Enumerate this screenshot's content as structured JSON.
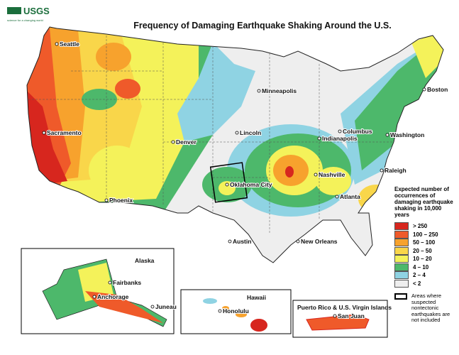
{
  "header": {
    "agency": "USGS",
    "tagline": "science for a changing world",
    "title": "Frequency of Damaging Earthquake Shaking Around the U.S."
  },
  "map": {
    "cities": [
      "Seattle",
      "Sacramento",
      "Phoenix",
      "Denver",
      "Minneapolis",
      "Lincoln",
      "Oklahoma City",
      "Austin",
      "New Orleans",
      "Indianapolis",
      "Columbus",
      "Washington",
      "Boston",
      "Nashville",
      "Raleigh",
      "Atlanta"
    ]
  },
  "insets": [
    {
      "title": "Alaska",
      "cities": [
        "Fairbanks",
        "Anchorage",
        "Juneau"
      ]
    },
    {
      "title": "Hawaii",
      "cities": [
        "Honolulu"
      ]
    },
    {
      "title": "Puerto Rico & U.S. Virgin Islands",
      "cities": [
        "San Juan"
      ]
    }
  ],
  "legend": {
    "title": "Expected number of occurrences of damaging earthquake shaking in 10,000 years",
    "classes": [
      {
        "label": "> 250",
        "color": "#d7261e"
      },
      {
        "label": "100 – 250",
        "color": "#ef5a2a"
      },
      {
        "label": "50 – 100",
        "color": "#f7a22d"
      },
      {
        "label": "20 – 50",
        "color": "#f9d64a"
      },
      {
        "label": "10 – 20",
        "color": "#f4f25a"
      },
      {
        "label": "4 – 10",
        "color": "#4db86b"
      },
      {
        "label": "2 – 4",
        "color": "#8fd3e3"
      },
      {
        "label": "< 2",
        "color": "#eeeeee"
      }
    ],
    "note": "Areas where suspected nontectonic earthquakes are not included"
  }
}
